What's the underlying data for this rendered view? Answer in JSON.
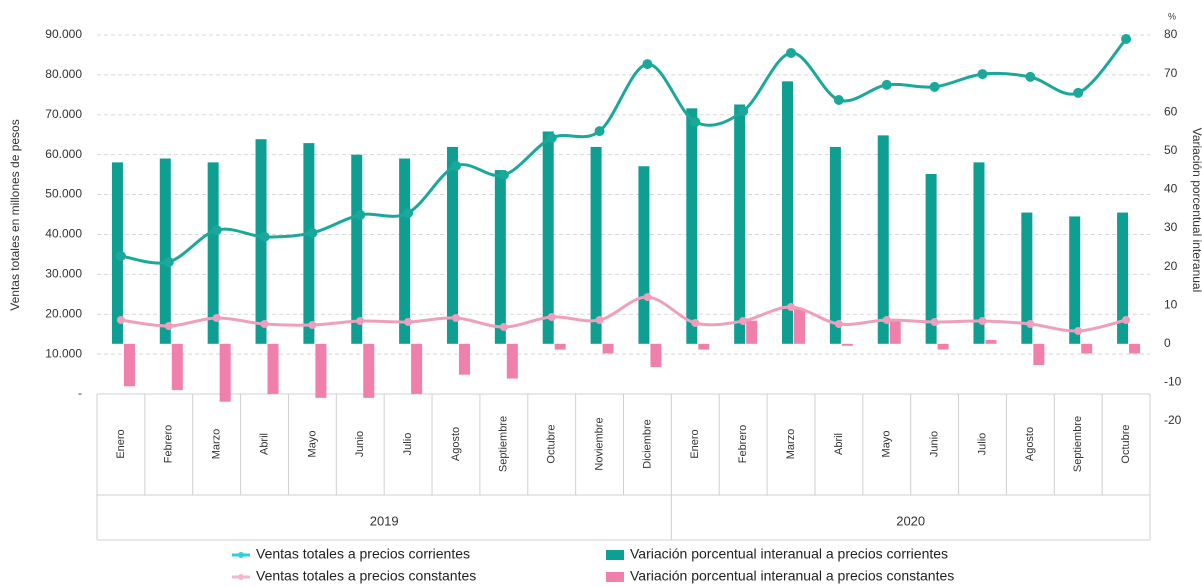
{
  "chart_data": {
    "type": "bar-line",
    "y_axis_label": "Ventas totales  en millones de pesos",
    "y2_axis_label": "Variación porcentual  interanual",
    "y2_unit": "%",
    "categories": [
      "Enero",
      "Febrero",
      "Marzo",
      "Abril",
      "Mayo",
      "Junio",
      "Julio",
      "Agosto",
      "Septiembre",
      "Octubre",
      "Noviembre",
      "Diciembre",
      "Enero",
      "Febrero",
      "Marzo",
      "Abril",
      "Mayo",
      "Junio",
      "Julio",
      "Agosto",
      "Septiembre",
      "Octubre"
    ],
    "year_labels": [
      "2019",
      "2020"
    ],
    "ylim": [
      0,
      90000
    ],
    "yticks": [
      {
        "value": 0,
        "label": "-"
      },
      {
        "value": 10000,
        "label": "10.000"
      },
      {
        "value": 20000,
        "label": "20.000"
      },
      {
        "value": 30000,
        "label": "30.000"
      },
      {
        "value": 40000,
        "label": "40.000"
      },
      {
        "value": 50000,
        "label": "50.000"
      },
      {
        "value": 60000,
        "label": "60.000"
      },
      {
        "value": 70000,
        "label": "70.000"
      },
      {
        "value": 80000,
        "label": "80.000"
      },
      {
        "value": 90000,
        "label": "90.000"
      }
    ],
    "y2lim": [
      -20,
      80
    ],
    "y2ticks": [
      -20,
      -10,
      0,
      10,
      20,
      30,
      40,
      50,
      60,
      70,
      80
    ],
    "grid": true,
    "series": [
      {
        "name": "Variación porcentual interanual a precios corrientes",
        "kind": "bar",
        "axis": "y2",
        "color": "#0f9f92",
        "values": [
          47,
          48,
          47,
          53,
          52,
          49,
          48,
          51,
          45,
          55,
          51,
          46,
          61,
          62,
          68,
          51,
          54,
          44,
          47,
          34,
          33,
          34
        ]
      },
      {
        "name": "Variación porcentual interanual a precios constantes",
        "kind": "bar",
        "axis": "y2",
        "color": "#f07fab",
        "values": [
          -11,
          -12,
          -15,
          -13,
          -14,
          -14,
          -13,
          -8,
          -9,
          -1.5,
          -2.5,
          -6,
          -1.5,
          6,
          9,
          -0.5,
          6,
          -1.5,
          1,
          -5.5,
          -2.5,
          -2.5
        ]
      },
      {
        "name": "Ventas totales a precios corrientes",
        "kind": "line",
        "color": "#1aa89a",
        "legend_color": "#2ad4d4",
        "values": [
          34600,
          33100,
          41100,
          39400,
          40400,
          44900,
          45400,
          57200,
          54900,
          64200,
          65900,
          82700,
          68200,
          70900,
          85500,
          73700,
          77500,
          77000,
          80200,
          79500,
          75500,
          89000
        ]
      },
      {
        "name": "Ventas totales a precios constantes",
        "kind": "line",
        "color": "#ee9fbc",
        "legend_color": "#f2b8cc",
        "values": [
          18550,
          17050,
          19050,
          17550,
          17300,
          18300,
          18050,
          19050,
          16800,
          19300,
          18550,
          24300,
          17800,
          18300,
          21800,
          17550,
          18550,
          18050,
          18300,
          17550,
          15800,
          18550
        ]
      }
    ]
  }
}
